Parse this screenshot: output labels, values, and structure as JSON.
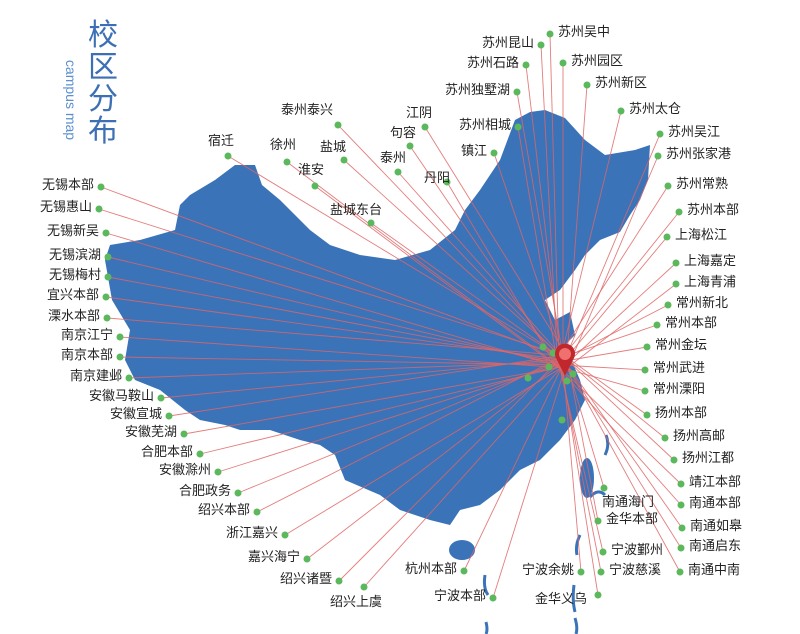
{
  "title": {
    "main": "校区分布",
    "subtitle": "campus map"
  },
  "colors": {
    "map": "#3b73b9",
    "line": "#e06666",
    "dot": "#5cb85c",
    "pin": "#c0282d",
    "title": "#3d6fb4"
  },
  "hub_icon": "map-pin-icon",
  "campuses": [
    "苏州昆山",
    "苏州吴中",
    "苏州石路",
    "苏州园区",
    "苏州独墅湖",
    "苏州新区",
    "江阴",
    "苏州相城",
    "苏州太仓",
    "句容",
    "镇江",
    "苏州吴江",
    "泰州",
    "苏州张家港",
    "丹阳",
    "苏州常熟",
    "苏州本部",
    "上海松江",
    "上海嘉定",
    "上海青浦",
    "常州新北",
    "常州本部",
    "常州金坛",
    "常州武进",
    "常州溧阳",
    "扬州本部",
    "扬州高邮",
    "扬州江都",
    "靖江本部",
    "南通本部",
    "南通如皋",
    "南通启东",
    "南通中南",
    "南通海门",
    "金华本部",
    "宁波鄞州",
    "宁波慈溪",
    "金华义乌",
    "宁波余姚",
    "宁波本部",
    "杭州本部",
    "绍兴上虞",
    "绍兴诸暨",
    "嘉兴海宁",
    "浙江嘉兴",
    "绍兴本部",
    "合肥政务",
    "安徽滁州",
    "合肥本部",
    "安徽芜湖",
    "安徽宣城",
    "安徽马鞍山",
    "南京建邺",
    "南京本部",
    "南京江宁",
    "溧水本部",
    "宜兴本部",
    "无锡梅村",
    "无锡滨湖",
    "无锡新吴",
    "无锡惠山",
    "无锡本部",
    "宿迁",
    "徐州",
    "淮安",
    "盐城",
    "盐城东台",
    "泰州泰兴"
  ]
}
